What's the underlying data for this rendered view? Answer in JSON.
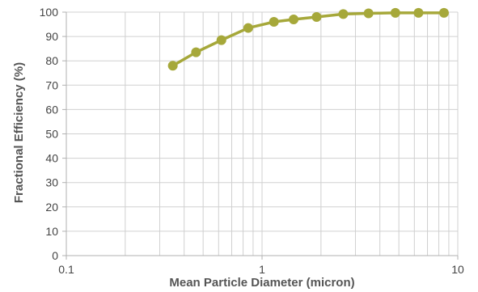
{
  "chart_data": {
    "type": "line",
    "xlabel": "Mean Particle Diameter (micron)",
    "ylabel": "Fractional Efficiency (%)",
    "xscale": "log",
    "xlim": [
      0.1,
      10
    ],
    "ylim": [
      0,
      100
    ],
    "x_ticks": [
      0.1,
      1,
      10
    ],
    "x_tick_labels": [
      "0.1",
      "1",
      "10"
    ],
    "y_ticks": [
      0,
      10,
      20,
      30,
      40,
      50,
      60,
      70,
      80,
      90,
      100
    ],
    "grid": true,
    "legend": "none",
    "colors": {
      "series": "#a6a83a",
      "grid": "#d0d0d0",
      "axis": "#b0b0b0"
    },
    "series": [
      {
        "x": [
          0.35,
          0.46,
          0.62,
          0.85,
          1.15,
          1.45,
          1.9,
          2.6,
          3.5,
          4.8,
          6.3,
          8.5
        ],
        "y": [
          78,
          83.5,
          88.5,
          93.5,
          96,
          97,
          98,
          99.2,
          99.5,
          99.7,
          99.7,
          99.7
        ]
      }
    ]
  }
}
